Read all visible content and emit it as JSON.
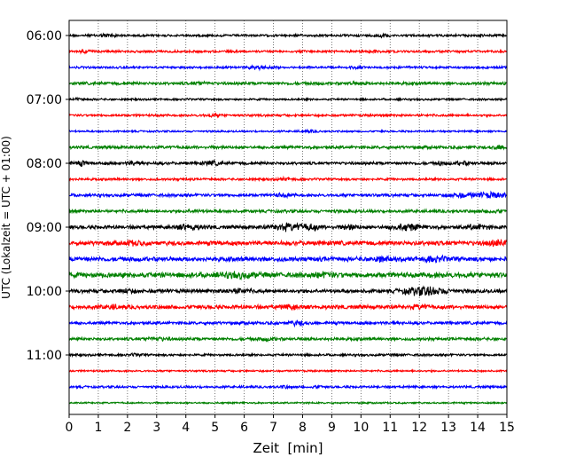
{
  "chart_data": {
    "type": "line",
    "title": "",
    "xlabel": "Zeit  [min]",
    "ylabel": "UTC (Lokalzeit = UTC + 01:00)",
    "xlim": [
      0,
      15
    ],
    "xticks": [
      "0",
      "1",
      "2",
      "3",
      "4",
      "5",
      "6",
      "7",
      "8",
      "9",
      "10",
      "11",
      "12",
      "13",
      "14",
      "15"
    ],
    "yticks": [
      "06:00",
      "07:00",
      "08:00",
      "09:00",
      "10:00",
      "11:00"
    ],
    "grid": "vertical dotted at each minute",
    "row_minutes": 15,
    "colors": [
      "#000000",
      "#ff0000",
      "#0000ff",
      "#008000"
    ],
    "rows": [
      {
        "start": "06:00",
        "noise": 1.4,
        "bursts": [
          [
            1.3,
            1.5,
            0.3
          ],
          [
            10.7,
            1.5,
            0.3
          ]
        ]
      },
      {
        "start": "06:15",
        "noise": 1.4,
        "bursts": [
          [
            0.6,
            1.2,
            0.2
          ],
          [
            10.4,
            1,
            0.2
          ]
        ]
      },
      {
        "start": "06:30",
        "noise": 1.4,
        "bursts": [
          [
            6.5,
            1.8,
            0.3
          ],
          [
            9.8,
            1,
            0.2
          ]
        ]
      },
      {
        "start": "06:45",
        "noise": 1.8,
        "bursts": [
          [
            4.5,
            1,
            0.3
          ],
          [
            9.8,
            1,
            0.3
          ]
        ]
      },
      {
        "start": "07:00",
        "noise": 1.2,
        "bursts": [
          [
            0.3,
            1,
            0.2
          ]
        ]
      },
      {
        "start": "07:15",
        "noise": 1.4,
        "bursts": [
          [
            4.9,
            1,
            0.3
          ]
        ]
      },
      {
        "start": "07:30",
        "noise": 1.1,
        "bursts": [
          [
            8.2,
            1,
            0.3
          ]
        ]
      },
      {
        "start": "07:45",
        "noise": 1.8,
        "bursts": [
          [
            14.8,
            2,
            0.3
          ]
        ]
      },
      {
        "start": "08:00",
        "noise": 1.8,
        "bursts": [
          [
            0.4,
            2.2,
            0.2
          ],
          [
            2.2,
            1.8,
            0.2
          ],
          [
            4.9,
            1.8,
            0.3
          ],
          [
            12.7,
            3,
            0.05
          ],
          [
            13.5,
            1.5,
            0.3
          ]
        ]
      },
      {
        "start": "08:15",
        "noise": 1.4,
        "bursts": [
          [
            7.4,
            1,
            0.3
          ]
        ]
      },
      {
        "start": "08:30",
        "noise": 1.8,
        "bursts": [
          [
            7.3,
            1.2,
            0.3
          ],
          [
            13.3,
            2,
            0.4
          ],
          [
            14.4,
            2.5,
            0.6
          ]
        ]
      },
      {
        "start": "08:45",
        "noise": 1.8,
        "bursts": [
          [
            4.3,
            1,
            0.3
          ],
          [
            14.5,
            1.2,
            0.3
          ]
        ]
      },
      {
        "start": "09:00",
        "noise": 2.2,
        "bursts": [
          [
            4.1,
            2.5,
            0.4
          ],
          [
            7.5,
            3.5,
            0.5
          ],
          [
            8.3,
            2.5,
            0.3
          ],
          [
            9.6,
            2,
            0.3
          ],
          [
            11.6,
            3,
            0.5
          ],
          [
            14.0,
            2.5,
            0.3
          ]
        ]
      },
      {
        "start": "09:15",
        "noise": 2.8,
        "bursts": [
          [
            2.2,
            1.5,
            0.3
          ],
          [
            14.7,
            2,
            0.4
          ]
        ]
      },
      {
        "start": "09:30",
        "noise": 2.8,
        "bursts": [
          [
            10.6,
            2,
            0.3
          ],
          [
            12.5,
            2,
            0.4
          ]
        ]
      },
      {
        "start": "09:45",
        "noise": 3.2,
        "bursts": [
          [
            5.8,
            2,
            0.5
          ],
          [
            8.7,
            1.5,
            0.3
          ]
        ]
      },
      {
        "start": "10:00",
        "noise": 2.2,
        "bursts": [
          [
            2.0,
            1.8,
            0.3
          ],
          [
            5.8,
            2,
            0.4
          ],
          [
            12.2,
            4.5,
            0.7
          ]
        ]
      },
      {
        "start": "10:15",
        "noise": 2.4,
        "bursts": [
          [
            1.5,
            1.5,
            0.3
          ],
          [
            7.6,
            1.5,
            0.3
          ],
          [
            12.0,
            1.5,
            0.3
          ]
        ]
      },
      {
        "start": "10:30",
        "noise": 1.8,
        "bursts": [
          [
            7.8,
            2,
            0.3
          ]
        ]
      },
      {
        "start": "10:45",
        "noise": 1.8,
        "bursts": [
          [
            3.0,
            1.2,
            0.4
          ],
          [
            6.8,
            1.2,
            0.3
          ]
        ]
      },
      {
        "start": "11:00",
        "noise": 1.4,
        "bursts": [
          [
            2.3,
            1,
            0.2
          ]
        ]
      },
      {
        "start": "11:15",
        "noise": 1.1,
        "bursts": []
      },
      {
        "start": "11:30",
        "noise": 1.4,
        "bursts": [
          [
            7.4,
            1,
            0.2
          ],
          [
            8.5,
            1,
            0.2
          ]
        ]
      },
      {
        "start": "11:45",
        "noise": 1.0,
        "bursts": []
      }
    ]
  }
}
